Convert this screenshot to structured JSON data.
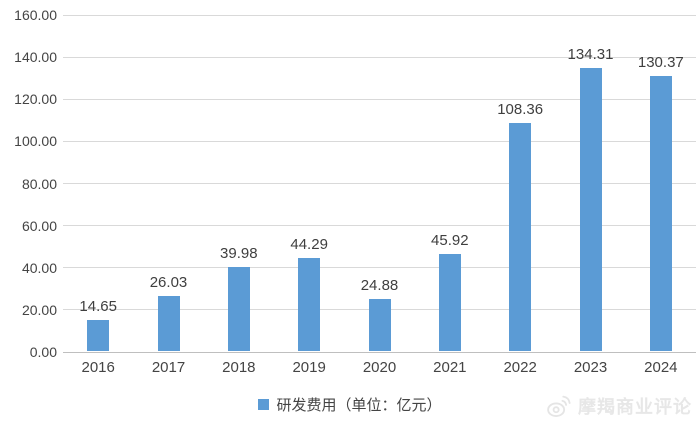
{
  "chart_data": {
    "type": "bar",
    "title": "",
    "categories": [
      "2016",
      "2017",
      "2018",
      "2019",
      "2020",
      "2021",
      "2022",
      "2023",
      "2024"
    ],
    "series": [
      {
        "name": "研发费用（单位：亿元）",
        "values": [
          14.65,
          26.03,
          39.98,
          44.29,
          24.88,
          45.92,
          108.36,
          134.31,
          130.37
        ]
      }
    ],
    "value_labels": [
      "14.65",
      "26.03",
      "39.98",
      "44.29",
      "24.88",
      "45.92",
      "108.36",
      "134.31",
      "130.37"
    ],
    "xlabel": "",
    "ylabel": "",
    "ylim": [
      0,
      160
    ],
    "ytick_step": 20,
    "yticks": [
      "0.00",
      "20.00",
      "40.00",
      "60.00",
      "80.00",
      "100.00",
      "120.00",
      "140.00",
      "160.00"
    ],
    "grid": true,
    "legend_position": "bottom",
    "bar_color": "#5b9bd5"
  },
  "legend": {
    "label": "研发费用（单位：亿元）",
    "swatch_color": "#5b9bd5"
  },
  "watermark": {
    "icon": "weibo-icon",
    "text": "摩羯商业评论"
  },
  "colors": {
    "bar": "#5b9bd5",
    "gridline": "#d9d9d9",
    "axis_line": "#bfbfbf",
    "text": "#404040",
    "watermark": "#e7e7e7",
    "background": "#ffffff"
  }
}
